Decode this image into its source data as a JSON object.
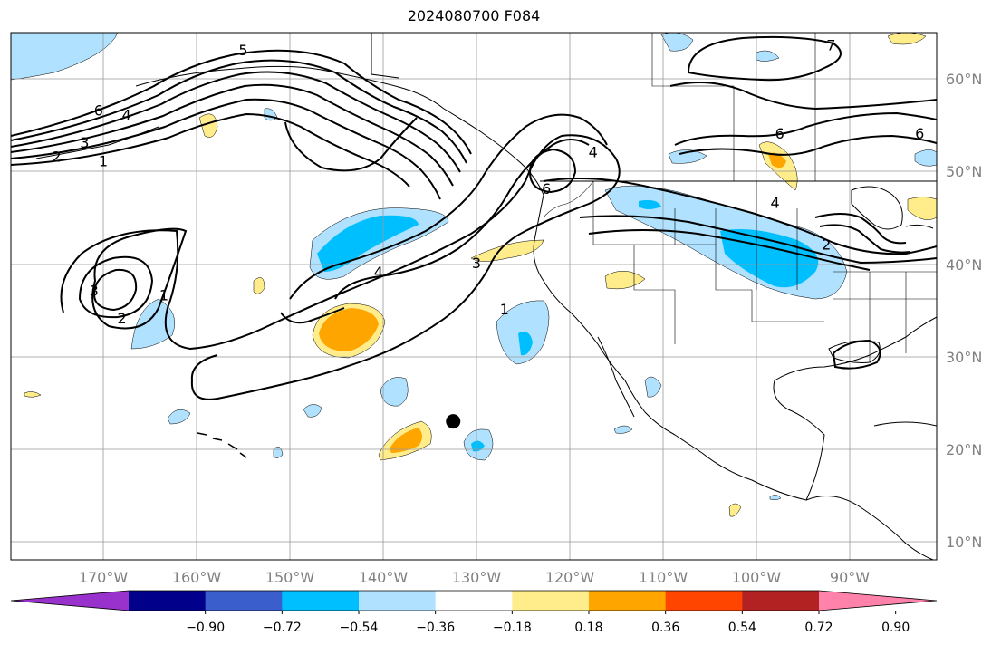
{
  "title": "2024080700 F084",
  "axes": {
    "lon_ticks": [
      "170°W",
      "160°W",
      "150°W",
      "140°W",
      "130°W",
      "120°W",
      "110°W",
      "100°W",
      "90°W"
    ],
    "lat_ticks": [
      "60°N",
      "50°N",
      "40°N",
      "30°N",
      "20°N",
      "10°N"
    ]
  },
  "contour_labels": [
    {
      "text": "5",
      "lon": -155,
      "lat": 63
    },
    {
      "text": "6",
      "lon": -170.5,
      "lat": 56.5
    },
    {
      "text": "4",
      "lon": -167.5,
      "lat": 56
    },
    {
      "text": "3",
      "lon": -172,
      "lat": 53
    },
    {
      "text": "2",
      "lon": -175,
      "lat": 51.5
    },
    {
      "text": "1",
      "lon": -170,
      "lat": 51
    },
    {
      "text": "3",
      "lon": -171,
      "lat": 37
    },
    {
      "text": "2",
      "lon": -168,
      "lat": 34
    },
    {
      "text": "1",
      "lon": -163.5,
      "lat": 36.5
    },
    {
      "text": "4",
      "lon": -140.5,
      "lat": 39
    },
    {
      "text": "3",
      "lon": -130,
      "lat": 40
    },
    {
      "text": "1",
      "lon": -127,
      "lat": 35
    },
    {
      "text": "4",
      "lon": -117.5,
      "lat": 52
    },
    {
      "text": "6",
      "lon": -97.5,
      "lat": 54
    },
    {
      "text": "6",
      "lon": -82.5,
      "lat": 54
    },
    {
      "text": "4",
      "lon": -98,
      "lat": 46.5
    },
    {
      "text": "2",
      "lon": -92.5,
      "lat": 42
    },
    {
      "text": "7",
      "lon": -92,
      "lat": 63.5
    },
    {
      "text": "6",
      "lon": -122.5,
      "lat": 48
    }
  ],
  "marker": {
    "lon": -132.5,
    "lat": 23
  },
  "colorbar": {
    "colors": [
      "#9932cc",
      "#00008b",
      "#3a5fcd",
      "#00bfff",
      "#b0e2ff",
      "#ffffff",
      "#ffec8b",
      "#ffa500",
      "#ff4500",
      "#b22222",
      "#ff82ab"
    ],
    "labels": [
      "−0.90",
      "−0.72",
      "−0.54",
      "−0.36",
      "−0.18",
      "0.18",
      "0.36",
      "0.54",
      "0.72",
      "0.90"
    ]
  }
}
